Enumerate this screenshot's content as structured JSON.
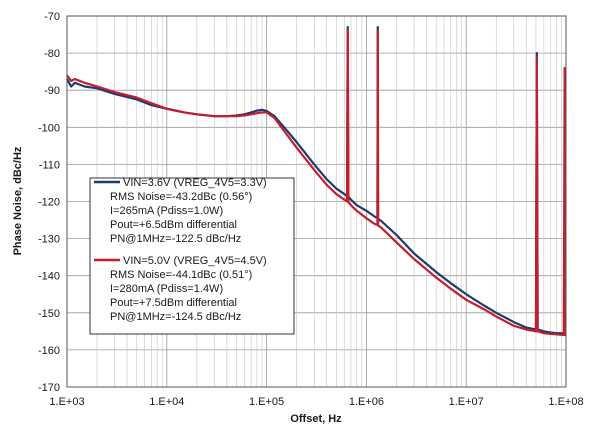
{
  "chart_data": {
    "type": "line",
    "title": "",
    "xlabel": "Offset, Hz",
    "ylabel": "Phase Noise, dBc/Hz",
    "x_scale": "log",
    "xlim": [
      1000,
      100000000
    ],
    "ylim": [
      -170,
      -70
    ],
    "x_tick_values": [
      1000,
      10000,
      100000,
      1000000,
      10000000,
      100000000
    ],
    "x_tick_labels": [
      "1.E+03",
      "1.E+04",
      "1.E+05",
      "1.E+06",
      "1.E+07",
      "1.E+08"
    ],
    "y_tick_values": [
      -70,
      -80,
      -90,
      -100,
      -110,
      -120,
      -130,
      -140,
      -150,
      -160,
      -170
    ],
    "y_tick_labels": [
      "-70",
      "-80",
      "-90",
      "-100",
      "-110",
      "-120",
      "-130",
      "-140",
      "-150",
      "-160",
      "-170"
    ],
    "grid": true,
    "legend_position": "lower-left",
    "series": [
      {
        "name": "VIN=3.6V (VREG_4V5=3.3V)",
        "color": "#1f3a6e",
        "legend_lines": [
          "VIN=3.6V (VREG_4V5=3.3V)",
          "RMS Noise=-43.2dBc (0.56°)",
          "I=265mA (Pdiss=1.0W)",
          "Pout=+6.5dBm differential",
          "PN@1MHz=-122.5 dBc/Hz"
        ],
        "x": [
          1000,
          1100,
          1200,
          1500,
          2000,
          3000,
          5000,
          7000,
          10000,
          15000,
          20000,
          30000,
          40000,
          50000,
          60000,
          70000,
          80000,
          90000,
          100000,
          120000,
          150000,
          200000,
          300000,
          400000,
          500000,
          600000,
          640000,
          650000,
          660000,
          700000,
          800000,
          1000000,
          1200000,
          1290000,
          1300000,
          1310000,
          1400000,
          2000000,
          3000000,
          5000000,
          7000000,
          10000000,
          15000000,
          20000000,
          30000000,
          40000000,
          50000000,
          51000000,
          52000000,
          60000000,
          70000000,
          80000000,
          100000000
        ],
        "y": [
          -87,
          -89,
          -88,
          -89,
          -89.5,
          -91,
          -92.5,
          -94,
          -95,
          -96,
          -96.5,
          -97,
          -97,
          -96.8,
          -96.5,
          -96,
          -95.5,
          -95.3,
          -95.6,
          -97,
          -100,
          -104,
          -110,
          -114,
          -116.5,
          -118,
          -118.5,
          -73,
          -118.7,
          -119.5,
          -121,
          -122.5,
          -124,
          -124.5,
          -73,
          -124.7,
          -125.2,
          -129,
          -134,
          -139,
          -142,
          -145,
          -148,
          -150,
          -152.5,
          -154,
          -154.5,
          -80,
          -154.5,
          -155,
          -155.3,
          -155.5,
          -155.5
        ]
      },
      {
        "name": "VIN=5.0V (VREG_4V5=4.5V)",
        "color": "#c41e2d",
        "legend_lines": [
          "VIN=5.0V (VREG_4V5=4.5V)",
          "RMS Noise=-44.1dBc (0.51°)",
          "I=280mA (Pdiss=1.4W)",
          "Pout=+7.5dBm differential",
          "PN@1MHz=-124.5 dBc/Hz"
        ],
        "x": [
          1000,
          1100,
          1200,
          1500,
          2000,
          3000,
          5000,
          7000,
          10000,
          15000,
          20000,
          30000,
          40000,
          50000,
          60000,
          70000,
          80000,
          90000,
          100000,
          120000,
          150000,
          200000,
          300000,
          400000,
          500000,
          600000,
          640000,
          650000,
          660000,
          700000,
          800000,
          1000000,
          1200000,
          1290000,
          1300000,
          1310000,
          1400000,
          2000000,
          3000000,
          5000000,
          7000000,
          10000000,
          15000000,
          20000000,
          30000000,
          40000000,
          50000000,
          51000000,
          52000000,
          60000000,
          70000000,
          80000000,
          95000000,
          97000000,
          98000000,
          100000000
        ],
        "y": [
          -86,
          -87.5,
          -87,
          -88,
          -89,
          -90.5,
          -92,
          -93.5,
          -95,
          -96,
          -96.5,
          -97,
          -97,
          -97,
          -96.8,
          -96.5,
          -96.2,
          -96,
          -96,
          -97.5,
          -101,
          -105.5,
          -111.5,
          -115.5,
          -118,
          -119.5,
          -120,
          -74,
          -120.2,
          -121,
          -122.5,
          -124.5,
          -126,
          -126.3,
          -74,
          -126.5,
          -127,
          -131,
          -135.5,
          -140.5,
          -143.5,
          -146.5,
          -149,
          -151,
          -153.5,
          -154.5,
          -155,
          -81,
          -155,
          -155.5,
          -155.7,
          -155.8,
          -156,
          -84,
          -156,
          -156
        ]
      }
    ]
  }
}
